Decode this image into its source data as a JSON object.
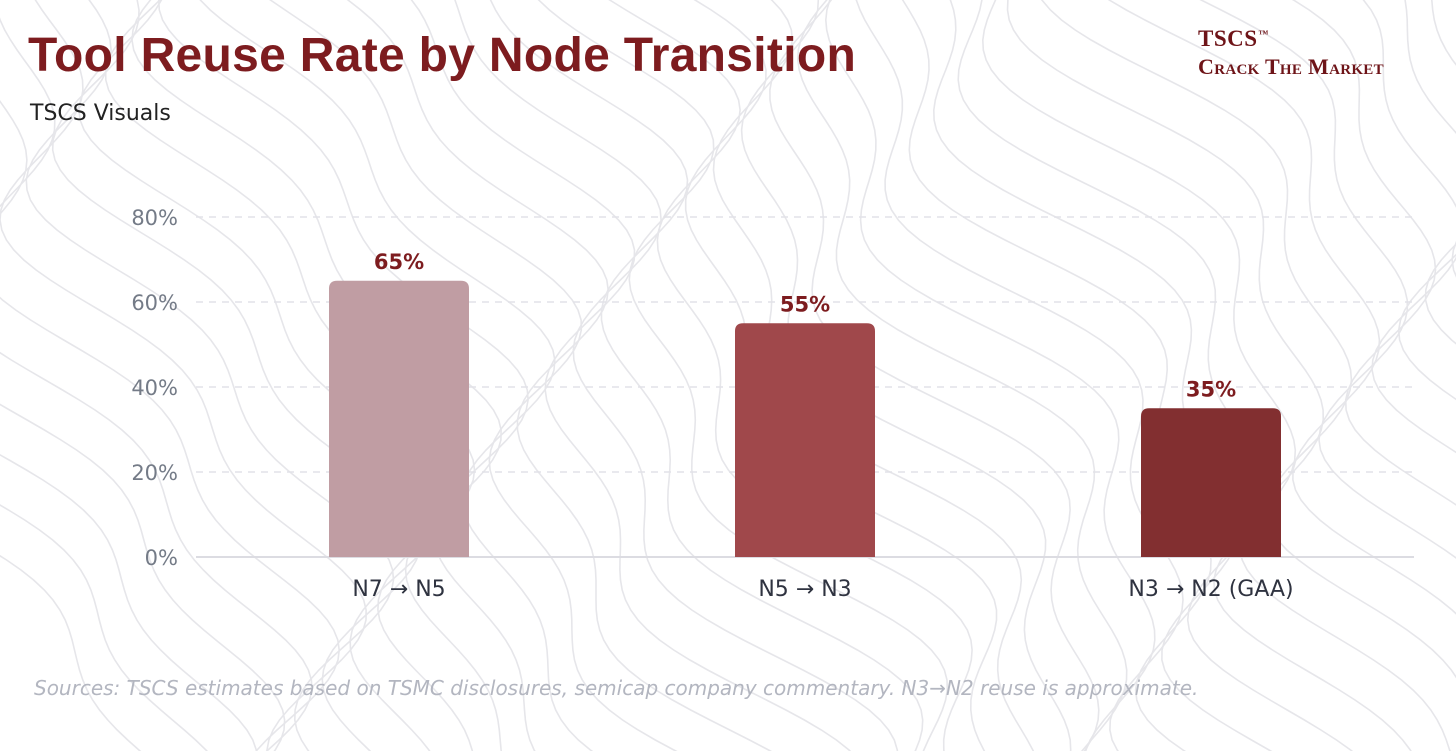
{
  "header": {
    "title": "Tool Reuse Rate by Node Transition",
    "subtitle": "TSCS Visuals"
  },
  "brand": {
    "name": "TSCS",
    "trademark": "™",
    "tagline": "Crack The Market"
  },
  "footer": {
    "source": "Sources: TSCS estimates based on TSMC disclosures, semicap company commentary. N3→N2 reuse is approximate."
  },
  "colors": {
    "title": "#7d1c1f",
    "bar_1": "#c09da3",
    "bar_2": "#a0484b",
    "bar_3": "#822f30",
    "value_label": "#7d1c1f",
    "grid": "#e2e2e8"
  },
  "chart_data": {
    "type": "bar",
    "categories": [
      "N7 → N5",
      "N5 → N3",
      "N3 → N2 (GAA)"
    ],
    "values": [
      65,
      55,
      35
    ],
    "value_labels": [
      "65%",
      "55%",
      "35%"
    ],
    "ylim": [
      0,
      80
    ],
    "yticks": [
      0,
      20,
      40,
      60,
      80
    ],
    "ytick_labels": [
      "0%",
      "20%",
      "40%",
      "60%",
      "80%"
    ],
    "xlabel": "",
    "ylabel": "",
    "grid": true,
    "legend": false
  }
}
